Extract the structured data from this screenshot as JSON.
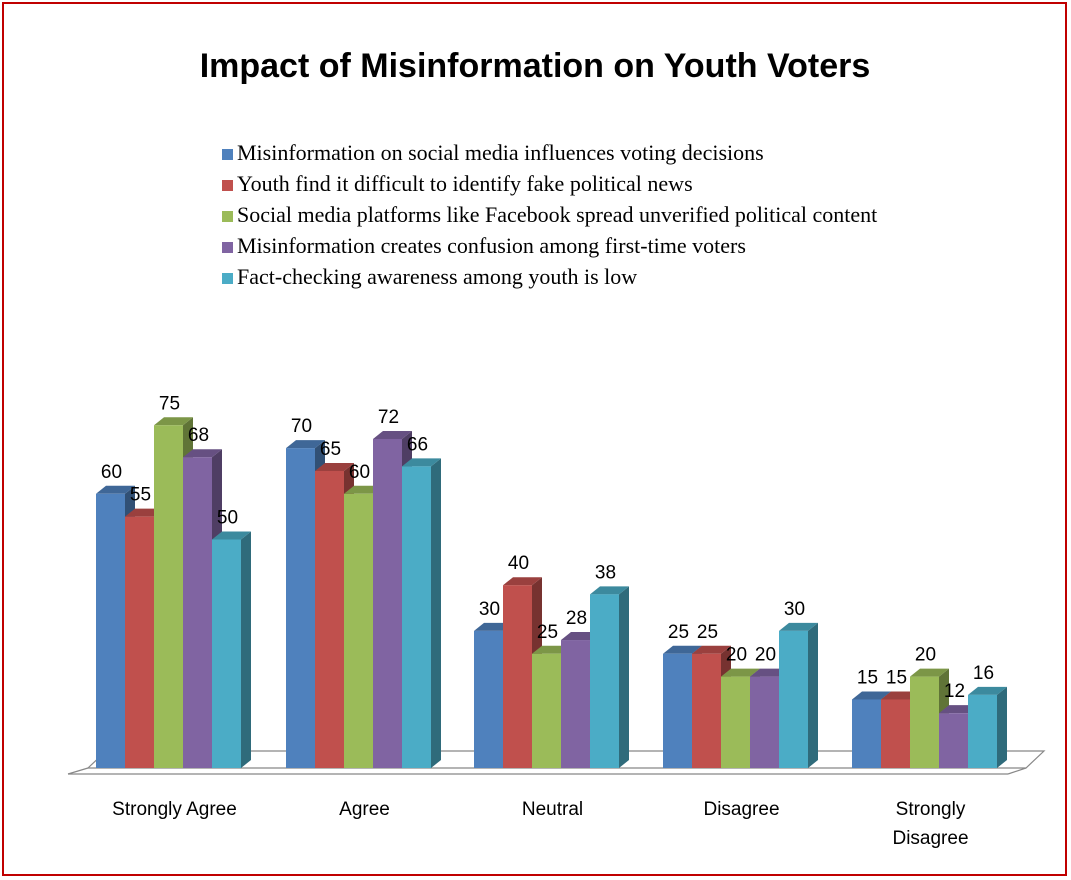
{
  "chart_data": {
    "type": "bar",
    "style": "3d-clustered-column",
    "title": "Impact of Misinformation on Youth Voters",
    "xlabel": "",
    "ylabel": "",
    "ylim": [
      0,
      80
    ],
    "grid": false,
    "legend_position": "top",
    "categories": [
      [
        "Strongly Agree"
      ],
      [
        "Agree"
      ],
      [
        "Neutral"
      ],
      [
        "Disagree"
      ],
      [
        "Strongly",
        "Disagree"
      ]
    ],
    "series": [
      {
        "name": "Misinformation on social media influences voting decisions",
        "color": "#4f81bd",
        "values": [
          60,
          70,
          30,
          25,
          15
        ]
      },
      {
        "name": "Youth find it difficult to identify fake political news",
        "color": "#c0504d",
        "values": [
          55,
          65,
          40,
          25,
          15
        ]
      },
      {
        "name": "Social media platforms like Facebook spread unverified political content",
        "color": "#9bbb59",
        "values": [
          75,
          60,
          25,
          20,
          20
        ]
      },
      {
        "name": "Misinformation creates confusion among first-time voters",
        "color": "#8064a2",
        "values": [
          68,
          72,
          28,
          20,
          12
        ]
      },
      {
        "name": "Fact-checking awareness among youth is low",
        "color": "#4bacc6",
        "values": [
          50,
          66,
          38,
          30,
          16
        ]
      }
    ]
  }
}
